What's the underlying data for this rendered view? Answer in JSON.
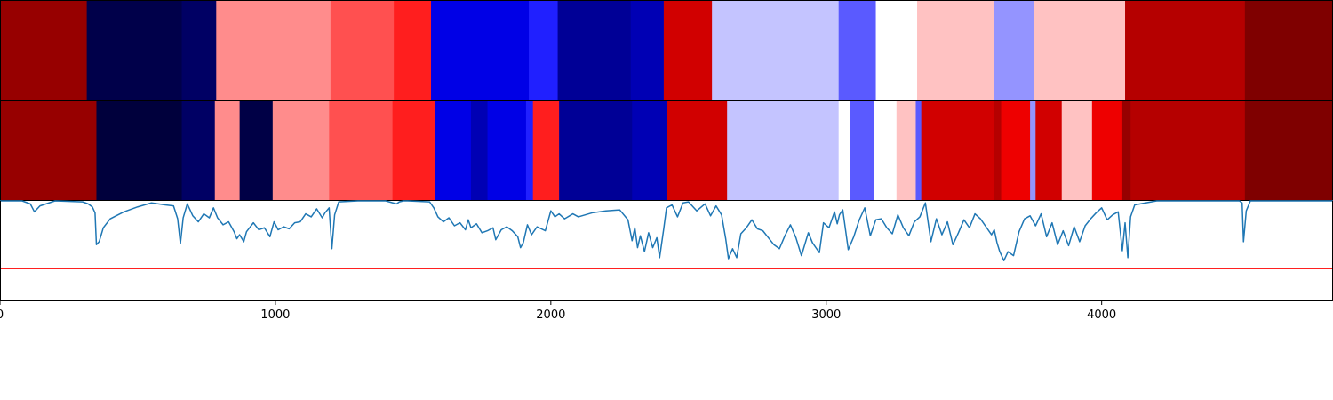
{
  "chart_data": [
    {
      "type": "heatmap",
      "colormap": "seismic",
      "title": "",
      "segments": [
        {
          "start": 0,
          "end": 315,
          "color": "#970000"
        },
        {
          "start": 315,
          "end": 660,
          "color": "#00004a"
        },
        {
          "start": 660,
          "end": 785,
          "color": "#000064"
        },
        {
          "start": 785,
          "end": 1200,
          "color": "#ff8c8c"
        },
        {
          "start": 1200,
          "end": 1430,
          "color": "#ff5050"
        },
        {
          "start": 1430,
          "end": 1565,
          "color": "#ff1e1e"
        },
        {
          "start": 1565,
          "end": 1920,
          "color": "#0000e6"
        },
        {
          "start": 1920,
          "end": 2025,
          "color": "#2020ff"
        },
        {
          "start": 2025,
          "end": 2290,
          "color": "#000096"
        },
        {
          "start": 2290,
          "end": 2410,
          "color": "#0000b4"
        },
        {
          "start": 2410,
          "end": 2585,
          "color": "#d10000"
        },
        {
          "start": 2585,
          "end": 3045,
          "color": "#c4c4ff"
        },
        {
          "start": 3045,
          "end": 3180,
          "color": "#5a5aff"
        },
        {
          "start": 3180,
          "end": 3330,
          "color": "#ffffff"
        },
        {
          "start": 3330,
          "end": 3610,
          "color": "#ffc2c2"
        },
        {
          "start": 3610,
          "end": 3755,
          "color": "#9494ff"
        },
        {
          "start": 3755,
          "end": 4085,
          "color": "#ffc2c2"
        },
        {
          "start": 4085,
          "end": 4520,
          "color": "#b50000"
        },
        {
          "start": 4520,
          "end": 4840,
          "color": "#7f0000"
        }
      ]
    },
    {
      "type": "heatmap",
      "colormap": "seismic",
      "title": "",
      "segments": [
        {
          "start": 0,
          "end": 350,
          "color": "#970000"
        },
        {
          "start": 350,
          "end": 660,
          "color": "#00003c"
        },
        {
          "start": 660,
          "end": 780,
          "color": "#000064"
        },
        {
          "start": 780,
          "end": 870,
          "color": "#ff8c8c"
        },
        {
          "start": 870,
          "end": 990,
          "color": "#000046"
        },
        {
          "start": 990,
          "end": 1195,
          "color": "#ff8c8c"
        },
        {
          "start": 1195,
          "end": 1425,
          "color": "#ff5050"
        },
        {
          "start": 1425,
          "end": 1580,
          "color": "#ff1e1e"
        },
        {
          "start": 1580,
          "end": 1710,
          "color": "#0000e6"
        },
        {
          "start": 1710,
          "end": 1770,
          "color": "#0000b4"
        },
        {
          "start": 1770,
          "end": 1910,
          "color": "#0000e6"
        },
        {
          "start": 1910,
          "end": 1935,
          "color": "#2020ff"
        },
        {
          "start": 1935,
          "end": 2030,
          "color": "#ff1e1e"
        },
        {
          "start": 2030,
          "end": 2295,
          "color": "#000096"
        },
        {
          "start": 2295,
          "end": 2420,
          "color": "#0000b4"
        },
        {
          "start": 2420,
          "end": 2640,
          "color": "#d10000"
        },
        {
          "start": 2640,
          "end": 3045,
          "color": "#c4c4ff"
        },
        {
          "start": 3045,
          "end": 3085,
          "color": "#ffffff"
        },
        {
          "start": 3085,
          "end": 3175,
          "color": "#5a5aff"
        },
        {
          "start": 3175,
          "end": 3255,
          "color": "#ffffff"
        },
        {
          "start": 3255,
          "end": 3325,
          "color": "#ffc2c2"
        },
        {
          "start": 3325,
          "end": 3345,
          "color": "#5a5aff"
        },
        {
          "start": 3345,
          "end": 3610,
          "color": "#d10000"
        },
        {
          "start": 3610,
          "end": 3635,
          "color": "#b50000"
        },
        {
          "start": 3635,
          "end": 3740,
          "color": "#ee0000"
        },
        {
          "start": 3740,
          "end": 3760,
          "color": "#9494ff"
        },
        {
          "start": 3760,
          "end": 3855,
          "color": "#d10000"
        },
        {
          "start": 3855,
          "end": 3965,
          "color": "#ffc2c2"
        },
        {
          "start": 3965,
          "end": 4075,
          "color": "#ee0000"
        },
        {
          "start": 4075,
          "end": 4105,
          "color": "#970000"
        },
        {
          "start": 4105,
          "end": 4520,
          "color": "#b50000"
        },
        {
          "start": 4520,
          "end": 4840,
          "color": "#7f0000"
        }
      ]
    },
    {
      "type": "line",
      "title": "",
      "xlim": [
        0,
        4840
      ],
      "ylim": [
        0,
        1
      ],
      "threshold": {
        "value": 0.32,
        "color": "#ff0000"
      },
      "series": [
        {
          "color": "#1f77b4",
          "x": [
            0,
            80,
            110,
            125,
            145,
            200,
            300,
            320,
            335,
            345,
            350,
            360,
            375,
            400,
            450,
            500,
            550,
            600,
            630,
            645,
            655,
            665,
            680,
            700,
            720,
            740,
            760,
            775,
            790,
            810,
            830,
            850,
            860,
            870,
            885,
            895,
            920,
            940,
            960,
            980,
            995,
            1010,
            1030,
            1050,
            1070,
            1090,
            1110,
            1130,
            1150,
            1170,
            1180,
            1195,
            1205,
            1215,
            1230,
            1300,
            1400,
            1440,
            1450,
            1465,
            1480,
            1560,
            1575,
            1590,
            1610,
            1630,
            1650,
            1670,
            1690,
            1700,
            1710,
            1730,
            1750,
            1770,
            1790,
            1800,
            1820,
            1840,
            1860,
            1880,
            1890,
            1900,
            1915,
            1930,
            1950,
            1980,
            2000,
            2015,
            2030,
            2050,
            2080,
            2100,
            2150,
            2200,
            2250,
            2280,
            2295,
            2305,
            2315,
            2325,
            2340,
            2355,
            2370,
            2385,
            2395,
            2410,
            2420,
            2440,
            2460,
            2480,
            2500,
            2530,
            2560,
            2580,
            2600,
            2620,
            2635,
            2645,
            2660,
            2675,
            2690,
            2710,
            2730,
            2750,
            2770,
            2790,
            2810,
            2830,
            2850,
            2870,
            2890,
            2910,
            2935,
            2950,
            2975,
            2990,
            3010,
            3030,
            3040,
            3048,
            3060,
            3080,
            3100,
            3120,
            3140,
            3160,
            3180,
            3200,
            3220,
            3240,
            3260,
            3280,
            3300,
            3320,
            3340,
            3360,
            3380,
            3400,
            3420,
            3440,
            3460,
            3480,
            3500,
            3520,
            3540,
            3560,
            3580,
            3600,
            3610,
            3620,
            3630,
            3645,
            3660,
            3680,
            3700,
            3720,
            3740,
            3760,
            3780,
            3800,
            3820,
            3840,
            3860,
            3880,
            3900,
            3920,
            3940,
            3960,
            3980,
            4000,
            4020,
            4040,
            4060,
            4075,
            4085,
            4095,
            4105,
            4120,
            4200,
            4400,
            4500,
            4510,
            4515,
            4525,
            4540,
            4600,
            4840
          ],
          "y": [
            1.0,
            1.0,
            0.97,
            0.89,
            0.95,
            1.0,
            0.99,
            0.97,
            0.94,
            0.88,
            0.56,
            0.59,
            0.73,
            0.82,
            0.89,
            0.94,
            0.98,
            0.96,
            0.95,
            0.82,
            0.57,
            0.83,
            0.97,
            0.85,
            0.79,
            0.87,
            0.83,
            0.93,
            0.83,
            0.76,
            0.79,
            0.69,
            0.62,
            0.66,
            0.59,
            0.69,
            0.78,
            0.71,
            0.73,
            0.64,
            0.79,
            0.71,
            0.74,
            0.72,
            0.78,
            0.79,
            0.87,
            0.84,
            0.92,
            0.83,
            0.88,
            0.93,
            0.52,
            0.86,
            0.99,
            1.0,
            1.0,
            0.97,
            0.99,
            1.0,
            1.0,
            0.99,
            0.93,
            0.84,
            0.79,
            0.83,
            0.75,
            0.78,
            0.71,
            0.81,
            0.73,
            0.77,
            0.68,
            0.7,
            0.73,
            0.61,
            0.71,
            0.74,
            0.7,
            0.64,
            0.53,
            0.58,
            0.76,
            0.66,
            0.74,
            0.7,
            0.9,
            0.84,
            0.87,
            0.82,
            0.87,
            0.84,
            0.88,
            0.9,
            0.91,
            0.81,
            0.6,
            0.73,
            0.53,
            0.65,
            0.49,
            0.68,
            0.53,
            0.63,
            0.43,
            0.72,
            0.93,
            0.96,
            0.84,
            0.98,
            0.99,
            0.9,
            0.97,
            0.85,
            0.95,
            0.86,
            0.62,
            0.42,
            0.52,
            0.43,
            0.67,
            0.73,
            0.81,
            0.72,
            0.7,
            0.63,
            0.56,
            0.52,
            0.65,
            0.76,
            0.63,
            0.45,
            0.68,
            0.58,
            0.48,
            0.78,
            0.73,
            0.89,
            0.77,
            0.86,
            0.91,
            0.51,
            0.64,
            0.81,
            0.93,
            0.65,
            0.81,
            0.82,
            0.73,
            0.67,
            0.86,
            0.73,
            0.65,
            0.79,
            0.84,
            0.98,
            0.59,
            0.82,
            0.66,
            0.79,
            0.56,
            0.68,
            0.81,
            0.73,
            0.87,
            0.82,
            0.74,
            0.66,
            0.71,
            0.58,
            0.49,
            0.4,
            0.49,
            0.45,
            0.69,
            0.82,
            0.85,
            0.75,
            0.87,
            0.64,
            0.78,
            0.56,
            0.7,
            0.55,
            0.74,
            0.59,
            0.75,
            0.82,
            0.88,
            0.93,
            0.81,
            0.86,
            0.89,
            0.5,
            0.78,
            0.43,
            0.84,
            0.96,
            1.0,
            1.0,
            1.0,
            0.98,
            0.59,
            0.9,
            1.0,
            1.0,
            1.0
          ]
        }
      ]
    }
  ],
  "x_axis": {
    "range": [
      0,
      4840
    ],
    "ticks": [
      {
        "value": 0,
        "label": "0"
      },
      {
        "value": 1000,
        "label": "1000"
      },
      {
        "value": 2000,
        "label": "2000"
      },
      {
        "value": 3000,
        "label": "3000"
      },
      {
        "value": 4000,
        "label": "4000"
      }
    ]
  }
}
